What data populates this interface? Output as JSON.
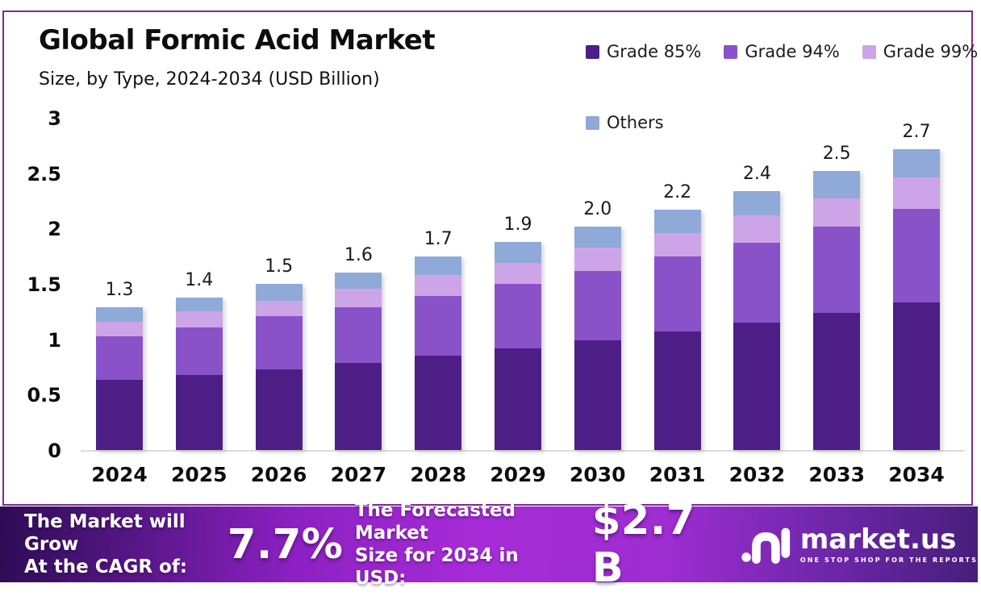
{
  "header": {
    "title": "Global Formic Acid Market",
    "subtitle": "Size, by Type, 2024-2034 (USD Billion)"
  },
  "legend": [
    {
      "label": "Grade 85%",
      "color": "#4E1E87"
    },
    {
      "label": "Grade 94%",
      "color": "#8A52C9"
    },
    {
      "label": "Grade 99%",
      "color": "#CEA4E8"
    },
    {
      "label": "Others",
      "color": "#8FA9D9"
    }
  ],
  "chart_data": {
    "type": "bar",
    "stacked": true,
    "title": "Global Formic Acid Market Size, by Type, 2024-2034 (USD Billion)",
    "xlabel": "",
    "ylabel": "USD Billion",
    "ylim": [
      0,
      3
    ],
    "grid": false,
    "legend_position": "top-right",
    "categories": [
      "2024",
      "2025",
      "2026",
      "2027",
      "2028",
      "2029",
      "2030",
      "2031",
      "2032",
      "2033",
      "2034"
    ],
    "series": [
      {
        "name": "Grade 85%",
        "color": "#4E1E87",
        "values": [
          0.63,
          0.68,
          0.73,
          0.79,
          0.85,
          0.92,
          0.99,
          1.07,
          1.15,
          1.24,
          1.33
        ]
      },
      {
        "name": "Grade 94%",
        "color": "#8A52C9",
        "values": [
          0.4,
          0.43,
          0.48,
          0.5,
          0.54,
          0.58,
          0.63,
          0.68,
          0.72,
          0.78,
          0.85
        ]
      },
      {
        "name": "Grade 99%",
        "color": "#CEA4E8",
        "values": [
          0.13,
          0.14,
          0.14,
          0.17,
          0.19,
          0.19,
          0.21,
          0.21,
          0.25,
          0.25,
          0.28
        ]
      },
      {
        "name": "Others",
        "color": "#8FA9D9",
        "values": [
          0.13,
          0.13,
          0.15,
          0.14,
          0.17,
          0.19,
          0.19,
          0.21,
          0.22,
          0.25,
          0.26
        ]
      }
    ],
    "total_labels": [
      "1.3",
      "1.4",
      "1.5",
      "1.6",
      "1.7",
      "1.9",
      "2.0",
      "2.2",
      "2.4",
      "2.5",
      "2.7"
    ],
    "yticks": [
      {
        "value": 3,
        "label": "3"
      },
      {
        "value": 2.5,
        "label": "2.5"
      },
      {
        "value": 2,
        "label": "2"
      },
      {
        "value": 1.5,
        "label": "1.5"
      },
      {
        "value": 1,
        "label": "1"
      },
      {
        "value": 0.5,
        "label": "0.5"
      },
      {
        "value": 0,
        "label": "0"
      }
    ]
  },
  "footer": {
    "cagr_label_line1": "The Market will Grow",
    "cagr_label_line2": "At the CAGR of:",
    "cagr_value": "7.7%",
    "forecast_label_line1": "The Forecasted Market",
    "forecast_label_line2": "Size for 2034 in USD:",
    "forecast_value": "$2.7 B",
    "brand": {
      "name": "market.us",
      "tagline": "ONE STOP SHOP FOR THE REPORTS"
    }
  }
}
